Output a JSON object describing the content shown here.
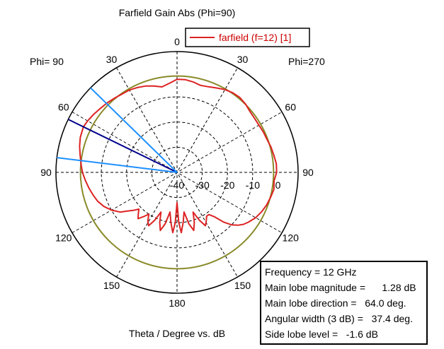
{
  "chart_data": {
    "type": "polar-line",
    "title": "Farfield Gain Abs (Phi=90)",
    "xlabel": "Theta / Degree vs. dB",
    "phi_left_label": "Phi= 90",
    "phi_right_label": "Phi=270",
    "angle_labels": [
      {
        "angle": 0,
        "text": "0"
      },
      {
        "angle": 30,
        "text": "30"
      },
      {
        "angle": 60,
        "text": "60"
      },
      {
        "angle": 90,
        "text": "90"
      },
      {
        "angle": 120,
        "text": "120"
      },
      {
        "angle": 150,
        "text": "150"
      },
      {
        "angle": 180,
        "text": "180"
      },
      {
        "angle": -150,
        "text": "150"
      },
      {
        "angle": -120,
        "text": "120"
      },
      {
        "angle": -90,
        "text": "90"
      },
      {
        "angle": -60,
        "text": "60"
      },
      {
        "angle": -30,
        "text": "30"
      }
    ],
    "radial_ticks": [
      "-40",
      "-30",
      "-20",
      "-10",
      "0"
    ],
    "rlim": [
      -40,
      8
    ],
    "legend": {
      "label": "farfield (f=12) [1]",
      "color": "#dd2222",
      "position": "top-right"
    },
    "series": [
      {
        "name": "farfield (f=12) [1]",
        "color": "#dd2222",
        "theta": [
          0,
          5,
          10,
          15,
          20,
          25,
          30,
          35,
          40,
          45,
          50,
          55,
          60,
          64,
          70,
          75,
          80,
          85,
          90,
          95,
          100,
          105,
          110,
          115,
          120,
          125,
          128,
          131,
          134,
          137,
          140,
          143,
          146,
          149,
          152,
          155,
          158,
          161,
          164,
          167,
          170,
          173,
          176,
          178,
          180,
          182,
          184,
          187,
          190,
          193,
          196,
          199,
          202,
          205,
          208,
          211,
          214,
          217,
          220,
          223,
          226,
          229,
          232,
          235,
          240,
          245,
          250,
          255,
          260,
          265,
          270,
          275,
          280,
          285,
          290,
          295,
          300,
          305,
          310,
          315,
          320,
          325,
          330,
          335,
          340,
          345,
          350,
          355,
          360
        ],
        "gain_db": [
          -3.0,
          -4.5,
          -5.5,
          -4.5,
          -3.5,
          -2.8,
          -2.2,
          -2.0,
          -1.5,
          -0.9,
          -0.4,
          0.3,
          0.9,
          1.28,
          0.8,
          0.0,
          -1.0,
          -1.8,
          -2.5,
          -3.5,
          -4.5,
          -5.5,
          -6.5,
          -8.0,
          -10.0,
          -12.5,
          -15.0,
          -17.0,
          -19.0,
          -17.5,
          -16.0,
          -18.0,
          -20.0,
          -17.5,
          -16.0,
          -19.0,
          -23.0,
          -19.0,
          -16.0,
          -19.0,
          -24.0,
          -20.0,
          -16.0,
          -20.0,
          -28.0,
          -20.0,
          -16.0,
          -20.0,
          -24.0,
          -19.0,
          -16.0,
          -19.0,
          -23.0,
          -19.0,
          -16.0,
          -17.5,
          -19.0,
          -19.0,
          -17.0,
          -13.0,
          -10.0,
          -8.0,
          -6.5,
          -5.5,
          -4.0,
          -3.0,
          -2.2,
          -1.6,
          -1.0,
          -1.4,
          -0.5,
          -0.5,
          -1.0,
          -1.4,
          -2.0,
          -2.2,
          -2.5,
          -2.5,
          -2.3,
          -1.6,
          -1.2,
          -1.4,
          -2.0,
          -3.0,
          -3.8,
          -4.2,
          -3.5,
          -3.0,
          -3.0
        ]
      },
      {
        "name": "-3 dB",
        "color": "#8a8a2a",
        "constant_db": -1.72
      }
    ],
    "markers": [
      {
        "name": "main lobe direction",
        "angle": 64.0,
        "color": "#00008b"
      },
      {
        "name": "beamwidth edge 1",
        "angle": 45.6,
        "color": "#1e90ff"
      },
      {
        "name": "beamwidth edge 2",
        "angle": 83.0,
        "color": "#1e90ff"
      }
    ]
  },
  "info_box": {
    "rows": [
      "Frequency = 12 GHz",
      "Main lobe magnitude =      1.28 dB",
      "Main lobe direction =   64.0 deg.",
      "Angular width (3 dB) =   37.4 deg.",
      "Side lobe level =   -1.6 dB"
    ]
  }
}
